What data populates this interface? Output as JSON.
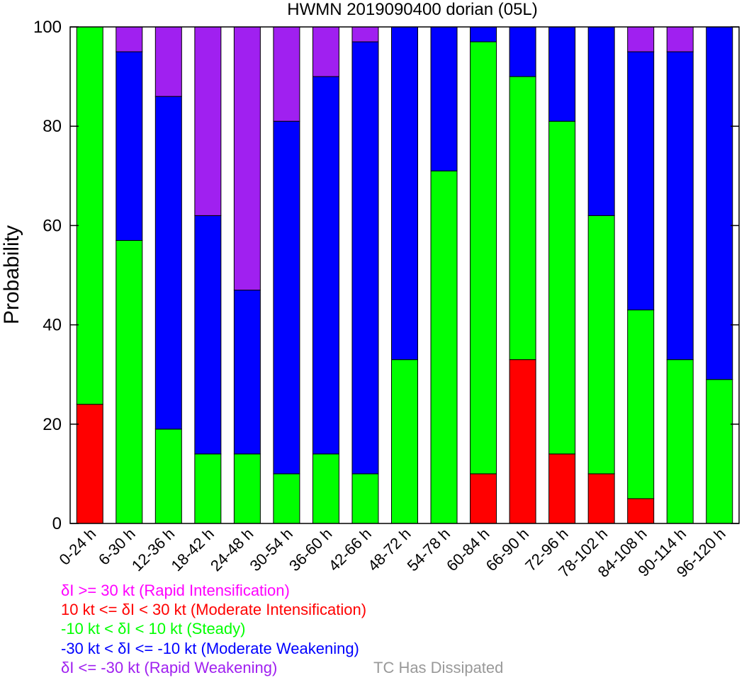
{
  "chart_data": {
    "type": "bar",
    "stacked": true,
    "title": "HWMN 2019090400 dorian (05L)",
    "ylabel": "Probability",
    "xlabel": "",
    "ylim": [
      0,
      100
    ],
    "yticks": [
      0,
      20,
      40,
      60,
      80,
      100
    ],
    "categories": [
      "0-24 h",
      "6-30 h",
      "12-36 h",
      "18-42 h",
      "24-48 h",
      "30-54 h",
      "36-60 h",
      "42-66 h",
      "48-72 h",
      "54-78 h",
      "60-84 h",
      "66-90 h",
      "72-96 h",
      "78-102 h",
      "84-108 h",
      "90-114 h",
      "96-120 h"
    ],
    "series": [
      {
        "key": "ri",
        "color": "#ff00ff",
        "values": [
          0,
          0,
          0,
          0,
          0,
          0,
          0,
          0,
          0,
          0,
          0,
          0,
          0,
          0,
          0,
          0,
          0
        ]
      },
      {
        "key": "mi",
        "color": "#ff0000",
        "values": [
          24,
          0,
          0,
          0,
          0,
          0,
          0,
          0,
          0,
          0,
          10,
          33,
          14,
          10,
          5,
          0,
          0
        ]
      },
      {
        "key": "st",
        "color": "#00ff00",
        "values": [
          76,
          57,
          19,
          14,
          14,
          10,
          14,
          10,
          33,
          71,
          87,
          57,
          67,
          52,
          38,
          33,
          29
        ]
      },
      {
        "key": "mw",
        "color": "#0000ff",
        "values": [
          0,
          38,
          67,
          48,
          33,
          71,
          76,
          87,
          67,
          29,
          3,
          10,
          19,
          38,
          52,
          62,
          71
        ]
      },
      {
        "key": "rw",
        "color": "#a020f0",
        "values": [
          0,
          5,
          14,
          38,
          53,
          19,
          10,
          3,
          0,
          0,
          0,
          0,
          0,
          0,
          5,
          5,
          0
        ]
      }
    ],
    "legend": [
      {
        "text": "δI >= 30 kt (Rapid Intensification)",
        "color": "#ff00ff"
      },
      {
        "text": "10 kt <= δI < 30 kt (Moderate Intensification)",
        "color": "#ff0000"
      },
      {
        "text": "-10 kt < δI < 10 kt (Steady)",
        "color": "#00ff00"
      },
      {
        "text": "-30 kt < δI <= -10 kt (Moderate Weakening)",
        "color": "#0000ff"
      },
      {
        "text": "δI <= -30 kt (Rapid Weakening)",
        "color": "#a020f0"
      }
    ],
    "dissipated_label": {
      "text": "TC Has Dissipated",
      "color": "#999999"
    },
    "grid": false,
    "legend_placement": "bottom-left"
  }
}
